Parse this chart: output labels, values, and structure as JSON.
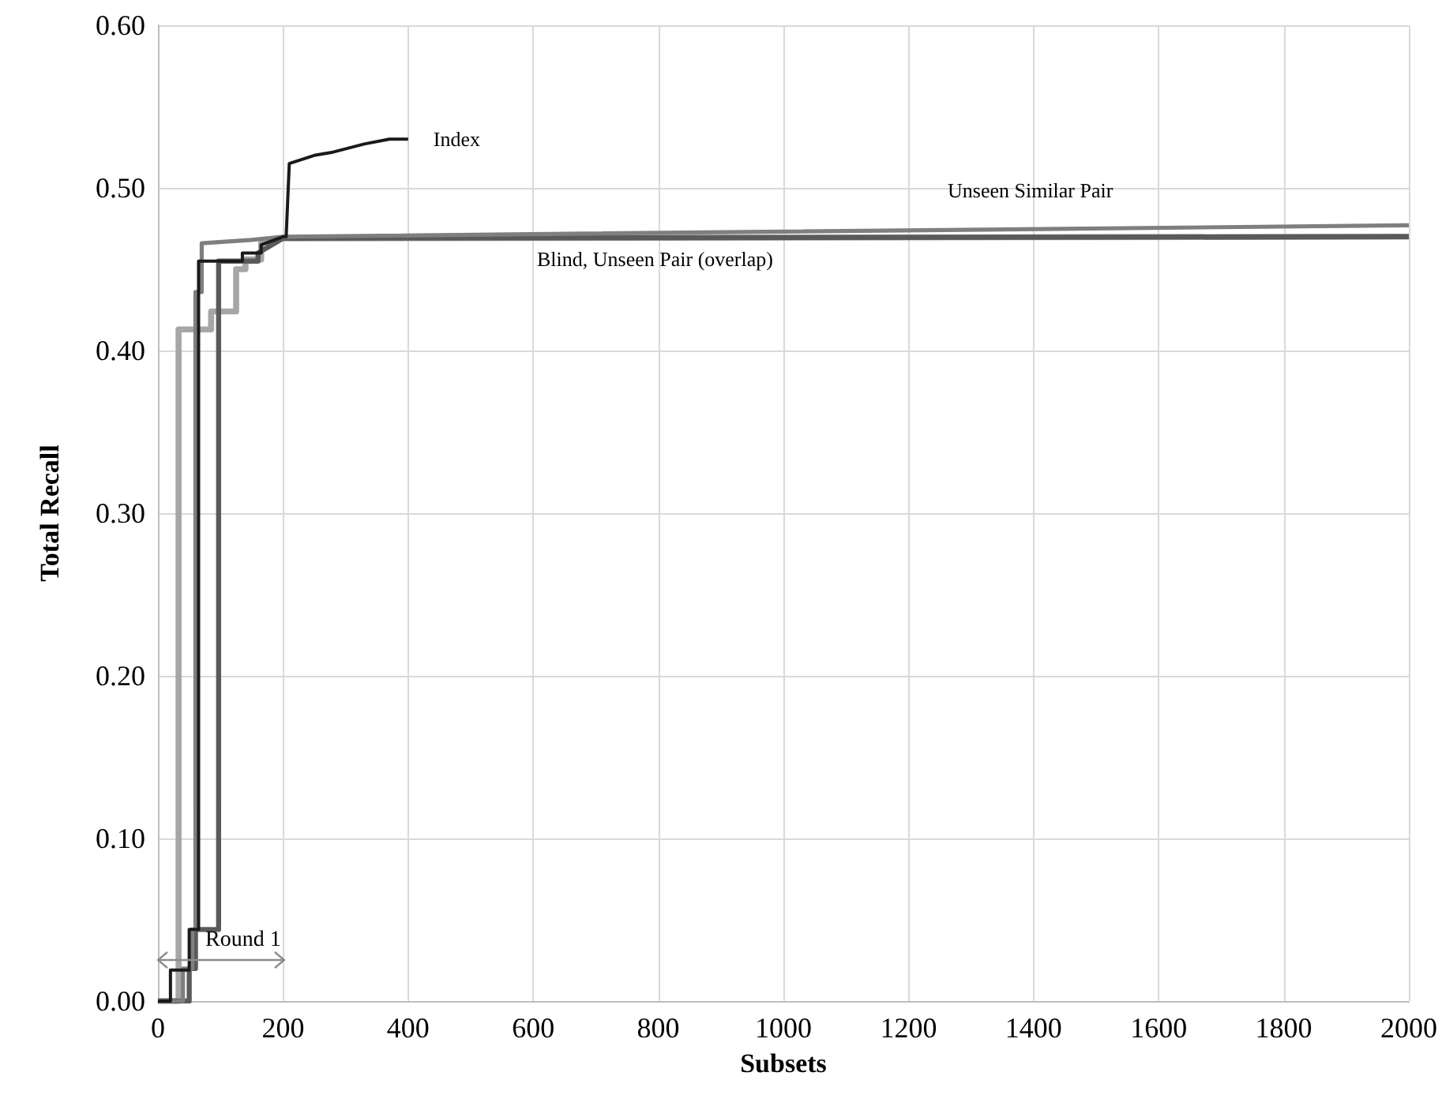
{
  "chart_data": {
    "type": "line",
    "xlabel": "Subsets",
    "ylabel": "Total Recall",
    "xlim": [
      0,
      2000
    ],
    "xticks": [
      0,
      200,
      400,
      600,
      800,
      1000,
      1200,
      1400,
      1600,
      1800,
      2000
    ],
    "ylim": [
      0,
      0.6
    ],
    "yticks": [
      {
        "value": 0,
        "label": "0.00"
      },
      {
        "value": 0.1,
        "label": "0.10"
      },
      {
        "value": 0.2,
        "label": "0.20"
      },
      {
        "value": 0.3,
        "label": "0.30"
      },
      {
        "value": 0.4,
        "label": "0.40"
      },
      {
        "value": 0.5,
        "label": "0.50"
      },
      {
        "value": 0.6,
        "label": "0.60"
      }
    ],
    "grid": true,
    "marker": "none",
    "line_style": "solid",
    "annotations": [
      "Round 1"
    ],
    "series": [
      {
        "name": "Index",
        "color": "#1a1a1a",
        "x": [
          0,
          20,
          20,
          50,
          50,
          65,
          65,
          135,
          135,
          165,
          165,
          200,
          205,
          210,
          250,
          280,
          330,
          370,
          400
        ],
        "values": [
          0,
          0,
          0.019,
          0.019,
          0.044,
          0.044,
          0.455,
          0.455,
          0.46,
          0.46,
          0.465,
          0.47,
          0.47,
          0.515,
          0.52,
          0.522,
          0.527,
          0.53,
          0.53
        ]
      },
      {
        "name": "Unseen Similar Pair",
        "color": "#7f7f7f",
        "x": [
          0,
          40,
          40,
          55,
          55,
          60,
          60,
          70,
          70,
          150,
          200,
          2000
        ],
        "values": [
          0,
          0,
          0.02,
          0.02,
          0.044,
          0.044,
          0.436,
          0.436,
          0.466,
          0.468,
          0.47,
          0.477
        ]
      },
      {
        "color": "#5a5a5a",
        "x": [
          0,
          50,
          50,
          60,
          60,
          97,
          97,
          160,
          160,
          200,
          2000
        ],
        "values": [
          0,
          0,
          0.02,
          0.02,
          0.044,
          0.044,
          0.455,
          0.455,
          0.46,
          0.469,
          0.47
        ]
      },
      {
        "name": "Blind, Unseen Pair (overlap)",
        "color": "#a6a6a6",
        "x": [
          0,
          33,
          33,
          85,
          85,
          125,
          125,
          140,
          140,
          165,
          165,
          200,
          2000
        ],
        "values": [
          0,
          0,
          0.413,
          0.413,
          0.424,
          0.424,
          0.45,
          0.45,
          0.456,
          0.456,
          0.466,
          0.469,
          0.47
        ]
      }
    ]
  }
}
